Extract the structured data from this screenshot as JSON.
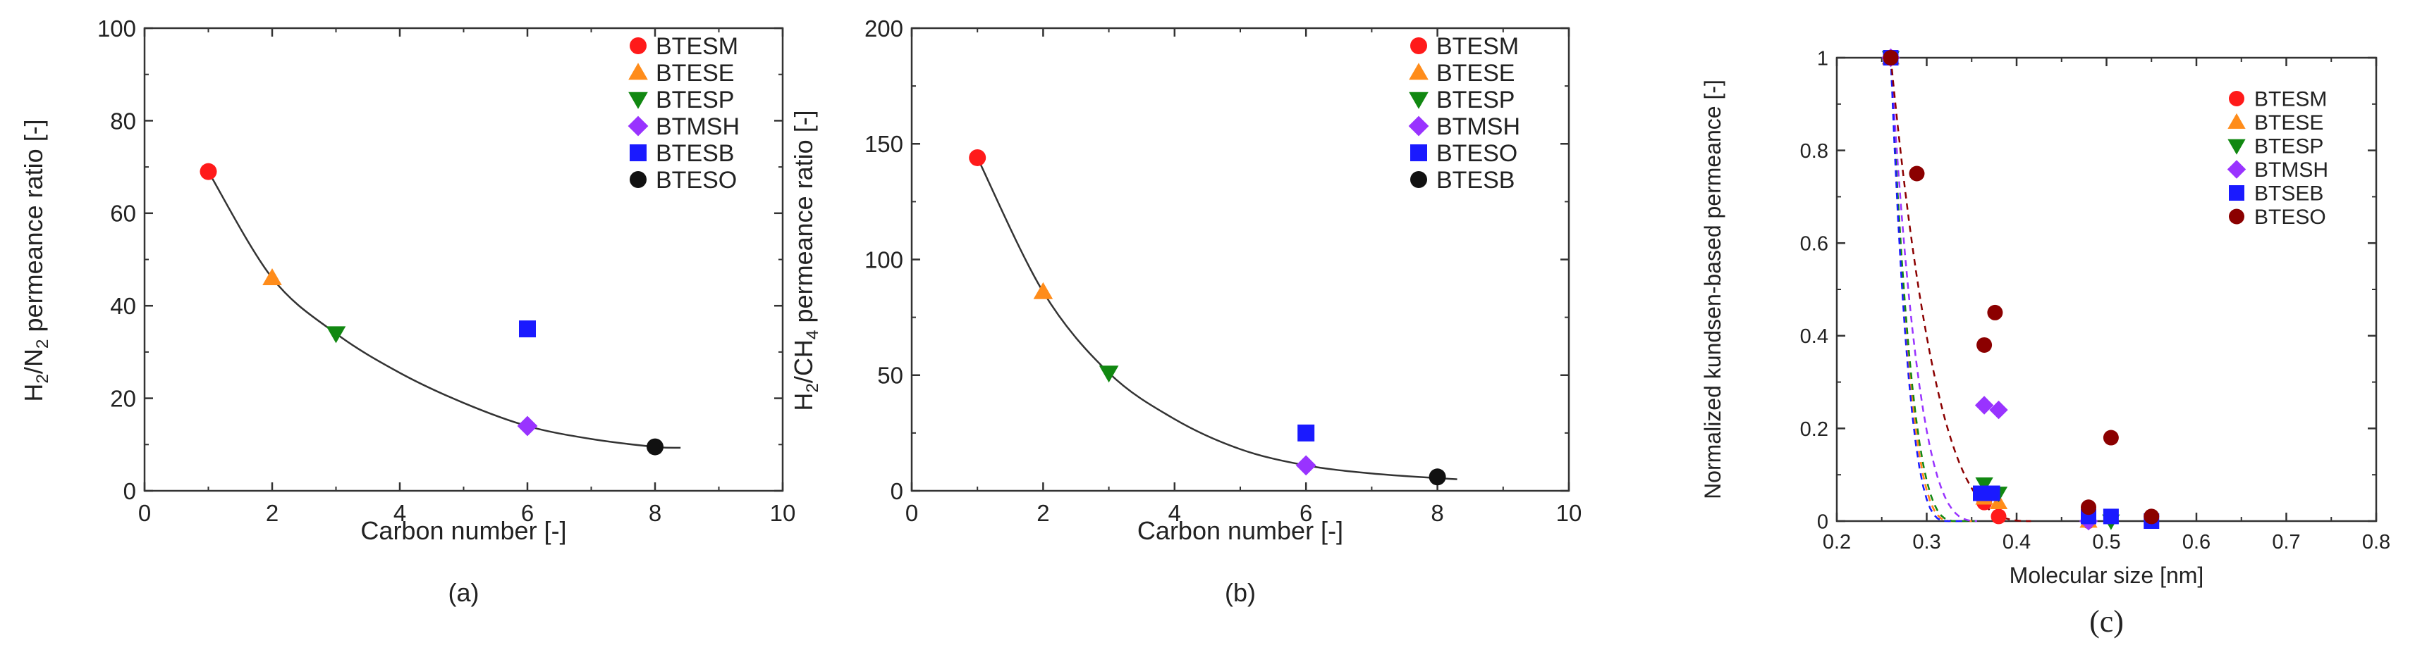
{
  "chart_data": [
    {
      "id": "a",
      "type": "scatter",
      "panel_label": "(a)",
      "xlabel": "Carbon number [-]",
      "ylabel": {
        "main": "H",
        "s1": "2",
        "mid": "/N",
        "s2": "2",
        "tail": " permeance ratio [-]"
      },
      "xlim": [
        0,
        10
      ],
      "ylim": [
        0,
        100
      ],
      "xticks": [
        "0",
        "2",
        "4",
        "6",
        "8",
        "10"
      ],
      "yticks": [
        "0",
        "20",
        "40",
        "60",
        "80",
        "100"
      ],
      "series": [
        {
          "name": "BTESM",
          "marker": "circle",
          "color": "#ff1a1a",
          "x": [
            1
          ],
          "y": [
            69
          ]
        },
        {
          "name": "BTESE",
          "marker": "triangle-up",
          "color": "#ff8c1a",
          "x": [
            2
          ],
          "y": [
            46
          ]
        },
        {
          "name": "BTESP",
          "marker": "triangle-down",
          "color": "#118811",
          "x": [
            3
          ],
          "y": [
            34
          ]
        },
        {
          "name": "BTMSH",
          "marker": "diamond",
          "color": "#9933ff",
          "x": [
            6
          ],
          "y": [
            14
          ]
        },
        {
          "name": "BTESB",
          "marker": "square",
          "color": "#1a1aff",
          "x": [
            6
          ],
          "y": [
            35
          ]
        },
        {
          "name": "BTESO",
          "marker": "circle",
          "color": "#111111",
          "x": [
            8
          ],
          "y": [
            9.5
          ]
        }
      ],
      "fit": {
        "x": [
          1,
          2,
          3,
          4,
          5,
          6,
          7,
          8,
          8.4
        ],
        "y": [
          69,
          46,
          34,
          25.5,
          19,
          14,
          11.2,
          9.5,
          9.3
        ]
      }
    },
    {
      "id": "b",
      "type": "scatter",
      "panel_label": "(b)",
      "xlabel": "Carbon number [-]",
      "ylabel": {
        "main": "H",
        "s1": "2",
        "mid": "/CH",
        "s2": "4",
        "tail": " permeance ratio [-]"
      },
      "xlim": [
        0,
        10
      ],
      "ylim": [
        0,
        200
      ],
      "xticks": [
        "0",
        "2",
        "4",
        "6",
        "8",
        "10"
      ],
      "yticks": [
        "0",
        "50",
        "100",
        "150",
        "200"
      ],
      "series": [
        {
          "name": "BTESM",
          "marker": "circle",
          "color": "#ff1a1a",
          "x": [
            1
          ],
          "y": [
            144
          ]
        },
        {
          "name": "BTESE",
          "marker": "triangle-up",
          "color": "#ff8c1a",
          "x": [
            2
          ],
          "y": [
            86
          ]
        },
        {
          "name": "BTESP",
          "marker": "triangle-down",
          "color": "#118811",
          "x": [
            3
          ],
          "y": [
            51
          ]
        },
        {
          "name": "BTMSH",
          "marker": "diamond",
          "color": "#9933ff",
          "x": [
            6
          ],
          "y": [
            11
          ]
        },
        {
          "name": "BTESO",
          "marker": "square",
          "color": "#1a1aff",
          "x": [
            6
          ],
          "y": [
            25
          ]
        },
        {
          "name": "BTESB",
          "marker": "circle",
          "color": "#111111",
          "x": [
            8
          ],
          "y": [
            6
          ]
        }
      ],
      "fit": {
        "x": [
          1,
          2,
          3,
          4,
          5,
          6,
          7,
          8,
          8.3
        ],
        "y": [
          144,
          86,
          51,
          31,
          18,
          11,
          7.5,
          5.5,
          5
        ]
      }
    },
    {
      "id": "c",
      "type": "scatter",
      "panel_label": "(c)",
      "xlabel": "Molecular size [nm]",
      "ylabel": {
        "main": "Normalized kundsen-based permeance [-]"
      },
      "xlim": [
        0.2,
        0.8
      ],
      "ylim": [
        0,
        1
      ],
      "xticks": [
        "0.2",
        "0.3",
        "0.4",
        "0.5",
        "0.6",
        "0.7",
        "0.8"
      ],
      "yticks": [
        "0",
        "0.2",
        "0.4",
        "0.6",
        "0.8",
        "1"
      ],
      "series": [
        {
          "name": "BTESM",
          "marker": "circle",
          "color": "#ff1a1a",
          "x": [
            0.26,
            0.364,
            0.38,
            0.48
          ],
          "y": [
            1,
            0.04,
            0.01,
            0.0
          ],
          "fit_d": 0.33
        },
        {
          "name": "BTESE",
          "marker": "triangle-up",
          "color": "#ff8c1a",
          "x": [
            0.26,
            0.364,
            0.38,
            0.48
          ],
          "y": [
            1,
            0.05,
            0.04,
            0.0
          ],
          "fit_d": 0.33
        },
        {
          "name": "BTESP",
          "marker": "triangle-down",
          "color": "#118811",
          "x": [
            0.26,
            0.364,
            0.38,
            0.505
          ],
          "y": [
            1,
            0.08,
            0.06,
            0.0
          ],
          "fit_d": 0.335
        },
        {
          "name": "BTMSH",
          "marker": "diamond",
          "color": "#9933ff",
          "x": [
            0.26,
            0.364,
            0.38,
            0.48
          ],
          "y": [
            1,
            0.25,
            0.24,
            0.0
          ],
          "fit_d": 0.36
        },
        {
          "name": "BTSEB",
          "marker": "square",
          "color": "#1a1aff",
          "x": [
            0.26,
            0.36,
            0.373,
            0.48,
            0.505,
            0.55
          ],
          "y": [
            1,
            0.06,
            0.06,
            0.01,
            0.01,
            0.0
          ],
          "fit_d": 0.325
        },
        {
          "name": "BTESO",
          "marker": "circle",
          "color": "#8b0000",
          "x": [
            0.26,
            0.289,
            0.364,
            0.376,
            0.48,
            0.505,
            0.55
          ],
          "y": [
            1,
            0.75,
            0.38,
            0.45,
            0.03,
            0.18,
            0.01
          ],
          "fit_d": 0.42
        }
      ]
    }
  ]
}
